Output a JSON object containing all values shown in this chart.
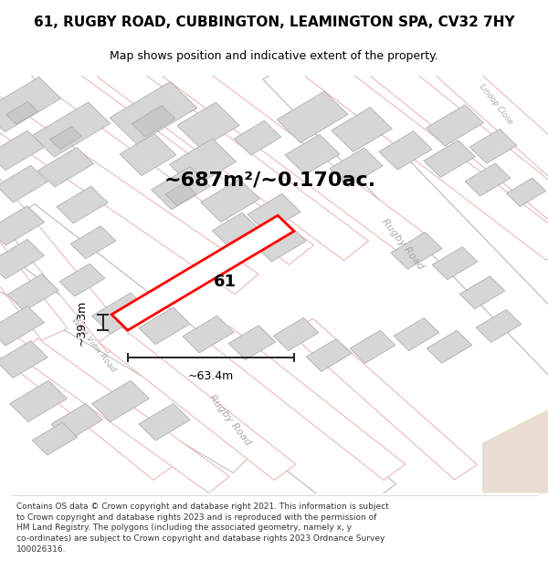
{
  "title": "61, RUGBY ROAD, CUBBINGTON, LEAMINGTON SPA, CV32 7HY",
  "subtitle": "Map shows position and indicative extent of the property.",
  "area_label": "~687m²/~0.170ac.",
  "property_number": "61",
  "width_label": "~63.4m",
  "height_label": "~39.3m",
  "footer": "Contains OS data © Crown copyright and database right 2021. This information is subject to Crown copyright and database rights 2023 and is reproduced with the permission of HM Land Registry. The polygons (including the associated geometry, namely x, y co-ordinates) are subject to Crown copyright and database rights 2023 Ordnance Survey 100026316.",
  "map_bg": "#f7f4f0",
  "building_fill": "#d8d8d8",
  "building_edge": "#b0b0b0",
  "plot_outline_color": "#ff0000",
  "arrow_color": "#222222",
  "road_edge_color": "#e8b0b0",
  "road_grey_edge": "#b0b0b0",
  "road_label_color": "#aaaaaa",
  "text_color": "#000000",
  "footer_color": "#333333",
  "title_bg": "#ffffff",
  "footer_bg": "#ffffff",
  "title_fontsize": 11,
  "subtitle_fontsize": 9,
  "area_fontsize": 16,
  "dim_fontsize": 9,
  "road_label_fontsize": 8,
  "footer_fontsize": 6.5
}
